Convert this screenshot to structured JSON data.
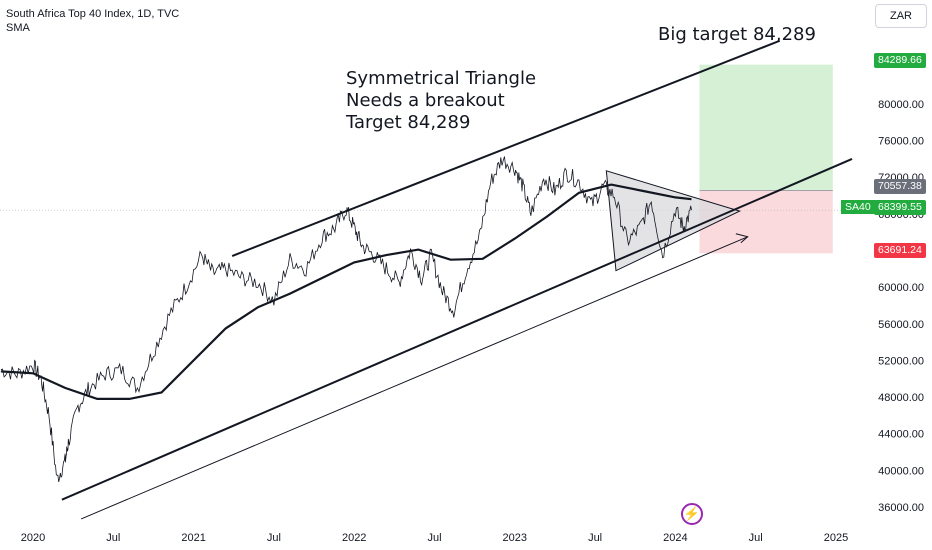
{
  "header": {
    "title": "South Africa Top 40 Index, 1D, TVC",
    "indicator": "SMA",
    "currency": "ZAR"
  },
  "annotations": {
    "big_target": "Big target 84,289",
    "triangle_line1": "Symmetrical Triangle",
    "triangle_line2": "Needs a breakout",
    "triangle_line3": "Target 84,289"
  },
  "price_tags": {
    "target": "84289.66",
    "entry": "70557.38",
    "symbol": "SA40",
    "last": "68399.55",
    "stop": "63691.24"
  },
  "colors": {
    "price": "#131722",
    "target_zone": "#d6f0d6",
    "stop_zone": "#fbdadd",
    "triangle_fill": "#d9d9dc",
    "tag_green": "#22ab3f",
    "tag_red": "#f23645"
  },
  "icons": {
    "event": "lightning-icon"
  },
  "chart_data": {
    "type": "line",
    "title": "South Africa Top 40 Index, 1D, TVC",
    "xlabel": "",
    "ylabel": "",
    "ylim": [
      34000,
      89000
    ],
    "x_ticks": [
      "2020",
      "Jul",
      "2021",
      "Jul",
      "2022",
      "Jul",
      "2023",
      "Jul",
      "2024",
      "Jul",
      "2025"
    ],
    "x_tick_dates": [
      2020.0,
      2020.5,
      2021.0,
      2021.5,
      2022.0,
      2022.5,
      2023.0,
      2023.5,
      2024.0,
      2024.5,
      2025.0
    ],
    "y_ticks": [
      "36000.00",
      "40000.00",
      "44000.00",
      "48000.00",
      "52000.00",
      "56000.00",
      "60000.00",
      "64000.00",
      "68000.00",
      "72000.00",
      "76000.00",
      "80000.00"
    ],
    "y_tick_values": [
      36000,
      40000,
      44000,
      48000,
      52000,
      56000,
      60000,
      64000,
      68000,
      72000,
      76000,
      80000
    ],
    "series": [
      {
        "name": "SA40",
        "x": [
          2019.8,
          2019.9,
          2020.0,
          2020.05,
          2020.1,
          2020.15,
          2020.2,
          2020.22,
          2020.28,
          2020.35,
          2020.45,
          2020.55,
          2020.65,
          2020.75,
          2020.85,
          2020.95,
          2021.05,
          2021.12,
          2021.2,
          2021.3,
          2021.4,
          2021.5,
          2021.6,
          2021.7,
          2021.8,
          2021.88,
          2021.95,
          2022.0,
          2022.05,
          2022.12,
          2022.2,
          2022.28,
          2022.35,
          2022.42,
          2022.48,
          2022.55,
          2022.62,
          2022.7,
          2022.78,
          2022.85,
          2022.92,
          2023.0,
          2023.05,
          2023.1,
          2023.18,
          2023.25,
          2023.32,
          2023.4,
          2023.48,
          2023.55,
          2023.62,
          2023.7,
          2023.78,
          2023.85,
          2023.92,
          2024.0,
          2024.05,
          2024.1
        ],
        "values": [
          51000,
          50500,
          51500,
          50000,
          46000,
          39000,
          41000,
          43000,
          47000,
          49000,
          50500,
          51000,
          49000,
          53000,
          57000,
          60000,
          63500,
          61500,
          62000,
          61000,
          60500,
          58500,
          63000,
          62000,
          65500,
          66500,
          68500,
          66500,
          64500,
          63500,
          62000,
          60500,
          64000,
          61000,
          63500,
          59500,
          57500,
          62000,
          65500,
          71500,
          74000,
          73000,
          71000,
          68000,
          72000,
          70500,
          72500,
          71500,
          69000,
          71000,
          70000,
          65000,
          66500,
          69500,
          63500,
          68500,
          66500,
          68400
        ]
      },
      {
        "name": "SMA",
        "x": [
          2019.8,
          2020.0,
          2020.2,
          2020.4,
          2020.6,
          2020.8,
          2021.0,
          2021.2,
          2021.4,
          2021.6,
          2021.8,
          2022.0,
          2022.2,
          2022.4,
          2022.6,
          2022.8,
          2023.0,
          2023.2,
          2023.4,
          2023.6,
          2023.8,
          2024.0,
          2024.1
        ],
        "values": [
          50800,
          50600,
          49000,
          47800,
          47800,
          48500,
          52000,
          55500,
          57800,
          59300,
          61000,
          62700,
          63500,
          64100,
          63000,
          63100,
          65300,
          67700,
          70300,
          71200,
          70500,
          69800,
          69600
        ]
      }
    ],
    "target_zone": [
      70557.38,
      84289.66
    ],
    "stop_zone": [
      63691.24,
      70557.38
    ]
  }
}
